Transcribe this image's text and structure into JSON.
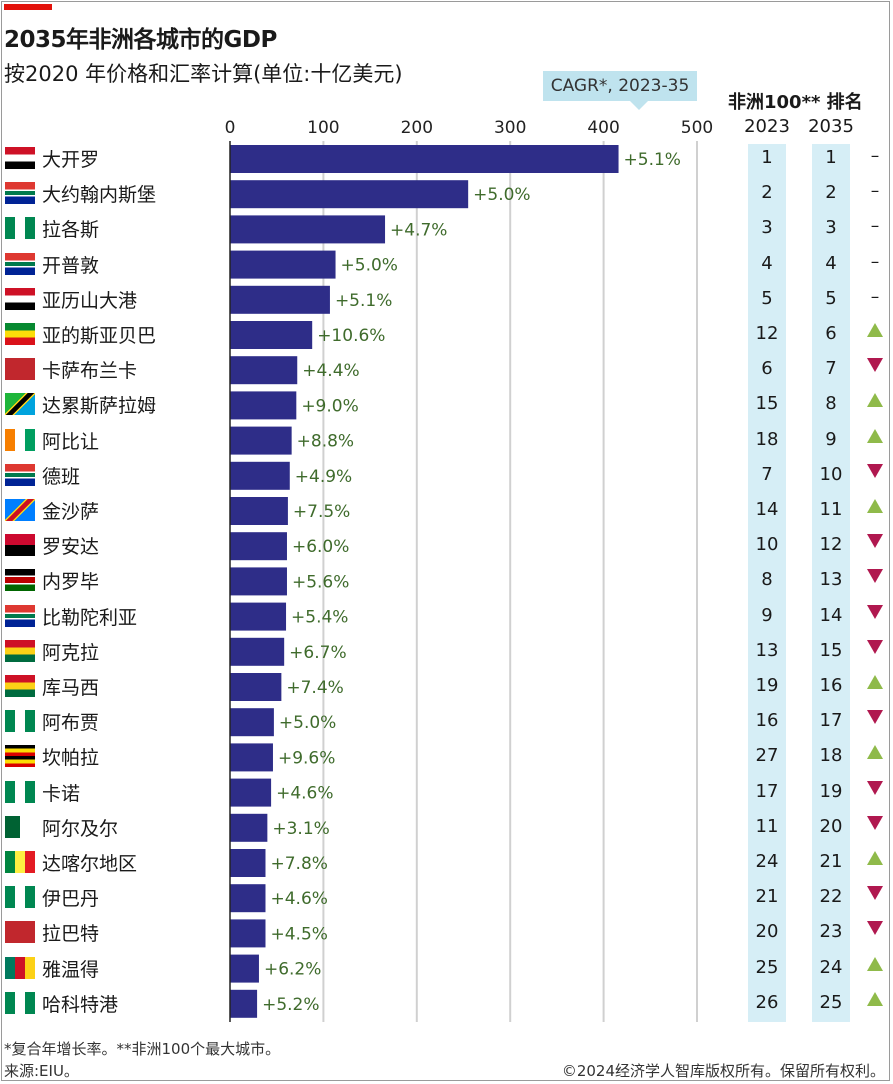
{
  "header": {
    "title": "2035年非洲各城市的GDP",
    "subtitle": "按2020 年价格和汇率计算(单位:十亿美元)",
    "cagr_label": "CAGR*, 2023-35",
    "rank_heading": "非洲100** 排名",
    "year_2023": "2023",
    "year_2035": "2035"
  },
  "colors": {
    "bar": "#2e2d88",
    "label_green": "#3f6b2c",
    "up": "#8fba4a",
    "down": "#b0184f",
    "highlight": "#d6eef6"
  },
  "chart_data": {
    "type": "bar",
    "orientation": "horizontal",
    "title": "2035年非洲各城市的GDP",
    "subtitle": "按2020 年价格和汇率计算(单位:十亿美元)",
    "xlim": [
      0,
      500
    ],
    "xticks": [
      0,
      100,
      200,
      300,
      400,
      500
    ],
    "grid": true,
    "categories": [
      "大开罗",
      "大约翰内斯堡",
      "拉各斯",
      "开普敦",
      "亚历山大港",
      "亚的斯亚贝巴",
      "卡萨布兰卡",
      "达累斯萨拉姆",
      "阿比让",
      "德班",
      "金沙萨",
      "罗安达",
      "内罗毕",
      "比勒陀利亚",
      "阿克拉",
      "库马西",
      "阿布贾",
      "坎帕拉",
      "卡诺",
      "阿尔及尔",
      "达喀尔地区",
      "伊巴丹",
      "拉巴特",
      "雅温得",
      "哈科特港"
    ],
    "values": [
      416,
      255,
      166,
      113,
      107,
      88,
      72,
      71,
      66,
      64,
      62,
      61,
      61,
      60,
      58,
      55,
      47,
      46,
      44,
      40,
      38,
      38,
      38,
      31,
      29
    ],
    "cagr_labels": [
      "+5.1%",
      "+5.0%",
      "+4.7%",
      "+5.0%",
      "+5.1%",
      "+10.6%",
      "+4.4%",
      "+9.0%",
      "+8.8%",
      "+4.9%",
      "+7.5%",
      "+6.0%",
      "+5.6%",
      "+5.4%",
      "+6.7%",
      "+7.4%",
      "+5.0%",
      "+9.6%",
      "+4.6%",
      "+3.1%",
      "+7.8%",
      "+4.6%",
      "+4.5%",
      "+6.2%",
      "+5.2%"
    ],
    "rank_2023": [
      "1",
      "2",
      "3",
      "4",
      "5",
      "12",
      "6",
      "15",
      "18",
      "7",
      "14",
      "10",
      "8",
      "9",
      "13",
      "19",
      "16",
      "27",
      "17",
      "11",
      "24",
      "21",
      "20",
      "25",
      "26"
    ],
    "rank_2035": [
      "1",
      "2",
      "3",
      "4",
      "5",
      "6",
      "7",
      "8",
      "9",
      "10",
      "11",
      "12",
      "13",
      "14",
      "15",
      "16",
      "17",
      "18",
      "19",
      "20",
      "21",
      "22",
      "23",
      "24",
      "25"
    ],
    "rank_change": [
      "–",
      "–",
      "–",
      "–",
      "–",
      "up",
      "down",
      "up",
      "up",
      "down",
      "up",
      "down",
      "down",
      "down",
      "down",
      "up",
      "down",
      "up",
      "down",
      "down",
      "up",
      "down",
      "down",
      "up",
      "up"
    ],
    "flags": [
      "egypt",
      "south-africa",
      "nigeria",
      "south-africa",
      "egypt",
      "ethiopia",
      "morocco",
      "tanzania",
      "ivory-coast",
      "south-africa",
      "dr-congo",
      "angola",
      "kenya",
      "south-africa",
      "ghana",
      "ghana",
      "nigeria",
      "uganda",
      "nigeria",
      "algeria",
      "senegal",
      "nigeria",
      "morocco",
      "cameroon",
      "nigeria"
    ]
  },
  "footer": {
    "footnote": "*复合年增长率。**非洲100个最大城市。",
    "source": "来源:EIU。",
    "copyright": "©2024经济学人智库版权所有。保留所有权利。"
  }
}
